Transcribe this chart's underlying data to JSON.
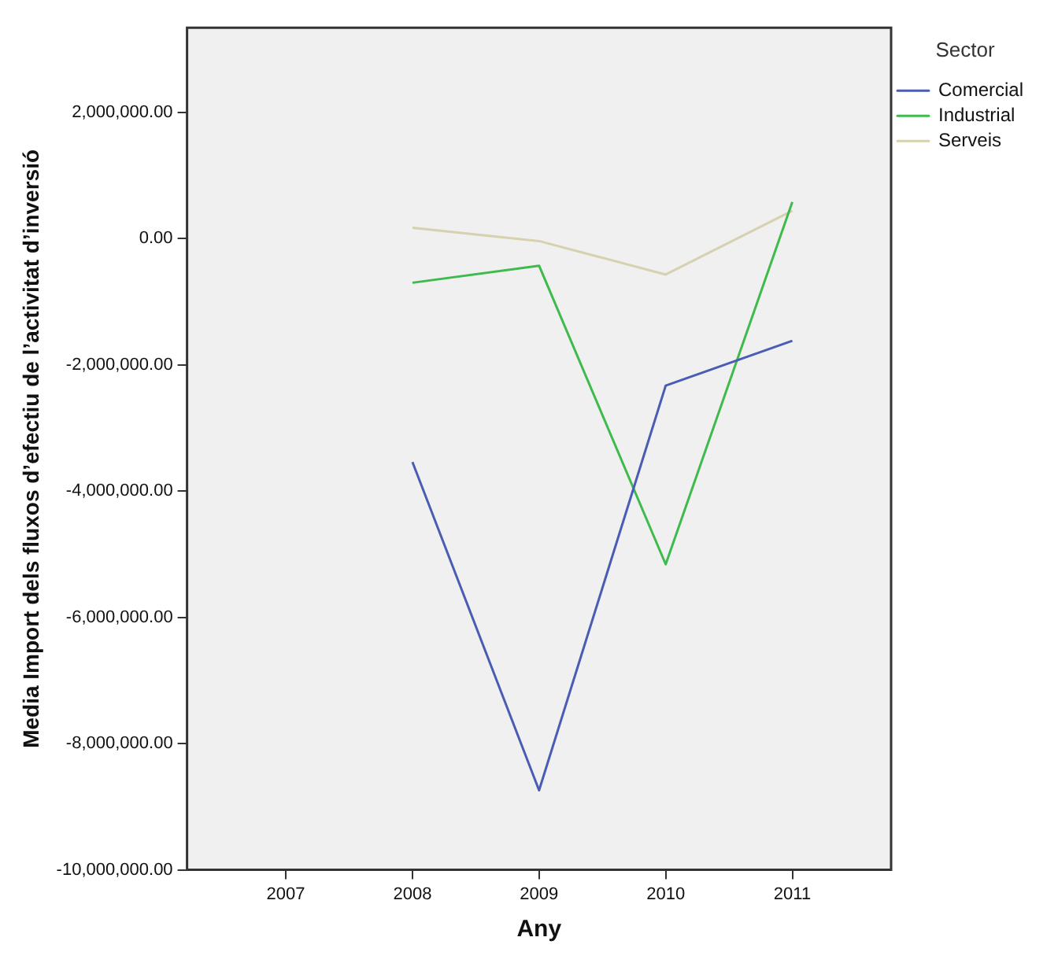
{
  "chart_data": {
    "type": "line",
    "xlabel": "Any",
    "ylabel": "Media Import dels fluxos d’efectiu de l’activitat d’inversió",
    "legend_title": "Sector",
    "x": [
      2008,
      2009,
      2010,
      2011
    ],
    "series": [
      {
        "name": "Comercial",
        "color": "#4a5cb4",
        "values": [
          -3540000,
          -8740000,
          -2330000,
          -1620000
        ]
      },
      {
        "name": "Industrial",
        "color": "#3fba4c",
        "values": [
          -700000,
          -430000,
          -5160000,
          580000
        ]
      },
      {
        "name": "Serveis",
        "color": "#d6d1ae",
        "values": [
          170000,
          -40000,
          -570000,
          440000
        ]
      }
    ],
    "xlim": [
      2006.22,
      2011.78
    ],
    "xticks": [
      2007,
      2008,
      2009,
      2010,
      2011
    ],
    "ylim": [
      -10000000,
      3340000
    ],
    "yticks": [
      {
        "value": -10000000,
        "label": "-10,000,000.00"
      },
      {
        "value": -8000000,
        "label": "-8,000,000.00"
      },
      {
        "value": -6000000,
        "label": "-6,000,000.00"
      },
      {
        "value": -4000000,
        "label": "-4,000,000.00"
      },
      {
        "value": -2000000,
        "label": "-2,000,000.00"
      },
      {
        "value": 0,
        "label": "0.00"
      },
      {
        "value": 2000000,
        "label": "2,000,000.00"
      }
    ],
    "grid": false,
    "legend": "top right",
    "marker": "none",
    "line_style": "solid"
  }
}
